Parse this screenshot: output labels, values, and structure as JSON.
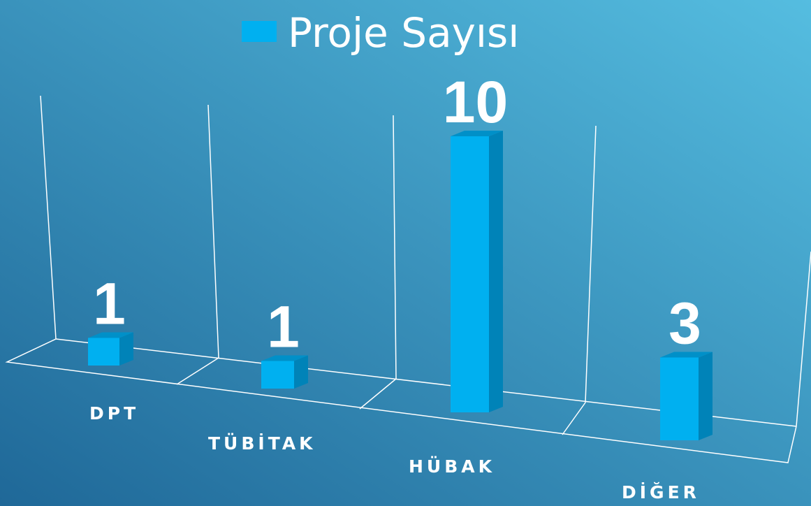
{
  "chart_data": {
    "type": "bar3d",
    "categories": [
      "DPT",
      "TÜBİTAK",
      "HÜBAK",
      "DİĞER"
    ],
    "series": [
      {
        "name": "Proje Sayısı",
        "color": "#00b0f0",
        "values": [
          1,
          1,
          10,
          3
        ]
      }
    ],
    "grid": true
  }
}
